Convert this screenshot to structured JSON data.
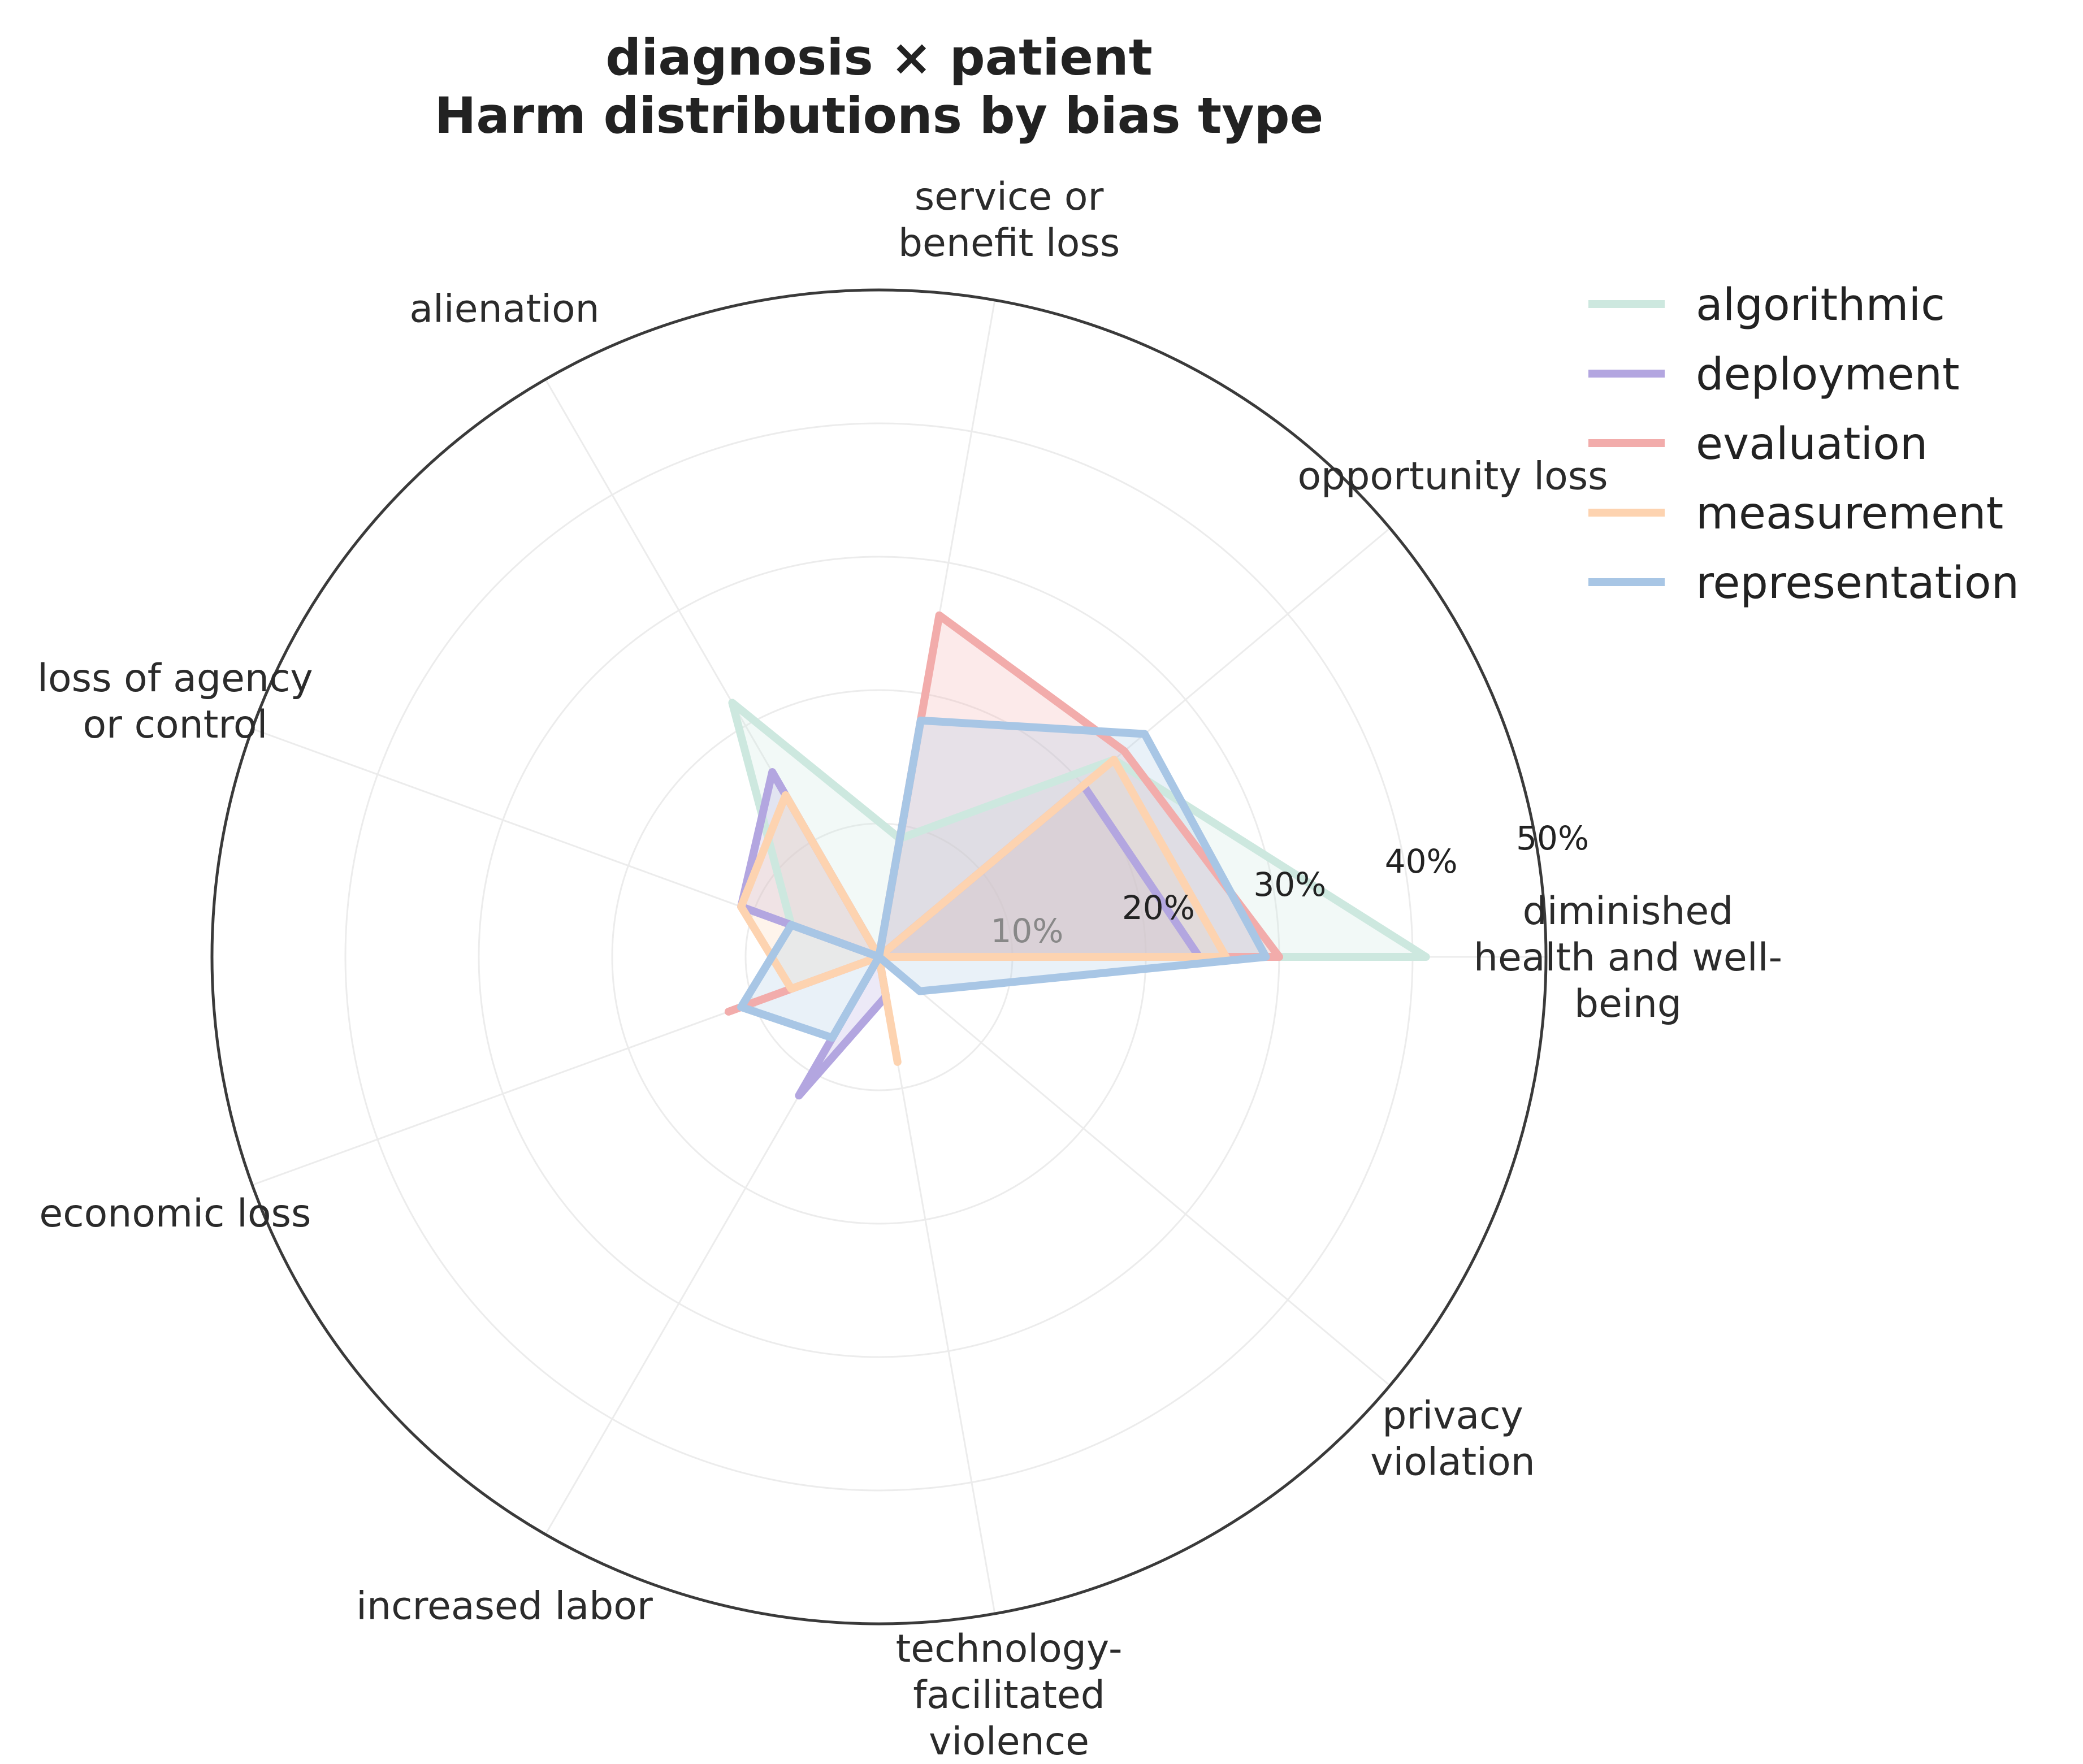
{
  "chart_data": {
    "type": "radar",
    "title_lines": [
      "diagnosis × patient",
      "Harm distributions by bias type"
    ],
    "rmax": 50,
    "r_ticks": [
      {
        "value": 10,
        "label": "10%"
      },
      {
        "value": 20,
        "label": "20%"
      },
      {
        "value": 30,
        "label": "30%"
      },
      {
        "value": 40,
        "label": "40%"
      },
      {
        "value": 50,
        "label": "50%"
      }
    ],
    "grid": true,
    "legend_position": "top-right",
    "categories": [
      {
        "name": "diminished health and well-being",
        "label_lines": [
          "diminished",
          "health and well-",
          "being"
        ]
      },
      {
        "name": "opportunity loss",
        "label_lines": [
          "opportunity loss"
        ]
      },
      {
        "name": "service or benefit loss",
        "label_lines": [
          "service or",
          "benefit loss"
        ]
      },
      {
        "name": "alienation",
        "label_lines": [
          "alienation"
        ]
      },
      {
        "name": "loss of agency or control",
        "label_lines": [
          "loss of agency",
          "or control"
        ]
      },
      {
        "name": "economic loss",
        "label_lines": [
          "economic loss"
        ]
      },
      {
        "name": "increased labor",
        "label_lines": [
          "increased labor"
        ]
      },
      {
        "name": "technology-facilitated violence",
        "label_lines": [
          "technology-",
          "facilitated",
          "violence"
        ]
      },
      {
        "name": "privacy violation",
        "label_lines": [
          "privacy",
          "violation"
        ]
      }
    ],
    "series": [
      {
        "name": "algorithmic",
        "color": "#cde8df",
        "values": [
          41,
          23,
          9,
          22,
          7,
          0,
          0,
          0,
          0
        ]
      },
      {
        "name": "deployment",
        "color": "#b3a6e0",
        "values": [
          24,
          20,
          0,
          16,
          11,
          0,
          12,
          3,
          0
        ]
      },
      {
        "name": "evaluation",
        "color": "#f2acab",
        "values": [
          30,
          24,
          26,
          0,
          0,
          12,
          0,
          0,
          0
        ]
      },
      {
        "name": "measurement",
        "color": "#fdd3b0",
        "values": [
          26,
          23,
          0,
          14,
          11,
          7,
          0,
          8,
          0
        ]
      },
      {
        "name": "representation",
        "color": "#a8c6e5",
        "values": [
          29,
          26,
          18,
          0,
          7,
          11,
          7,
          0,
          4
        ]
      }
    ]
  }
}
